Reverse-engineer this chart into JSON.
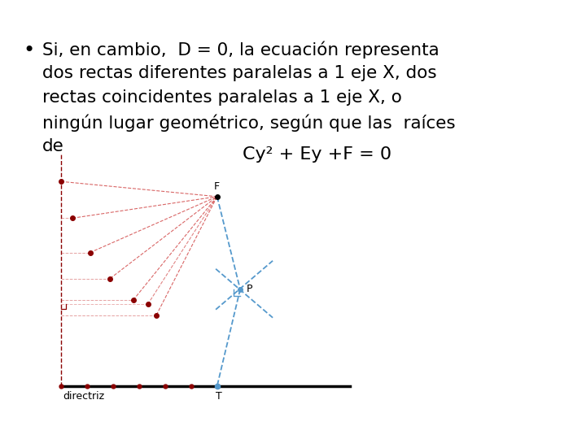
{
  "background_color": "#ffffff",
  "bullet_text_line1": "Si, en cambio,  D = 0, la ecuación representa",
  "bullet_text_line2": "dos rectas diferentes paralelas a 1 eje X, dos",
  "bullet_text_line3": "rectas coincidentes paralelas a 1 eje X, o",
  "bullet_text_line4": "ningún lugar geométrico, según que las  raíces",
  "bullet_text_line5": "de",
  "equation": "Cy² + Ey +F = 0",
  "font_size_text": 15.5,
  "font_size_eq": 16,
  "font_size_labels": 9
}
